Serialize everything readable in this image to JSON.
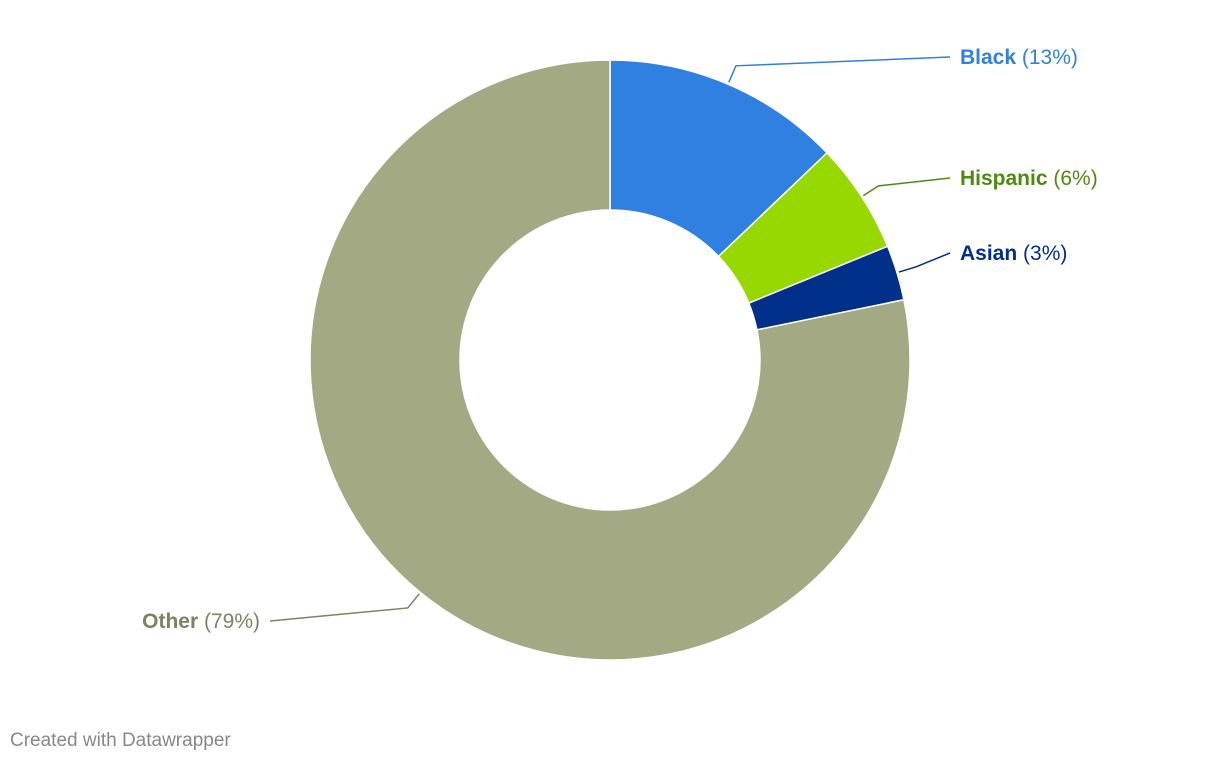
{
  "chart_data": {
    "type": "pie",
    "subtype": "donut",
    "slices": [
      {
        "label": "Black",
        "value": 13,
        "display": "(13%)",
        "color": "#2f80e0"
      },
      {
        "label": "Hispanic",
        "value": 6,
        "display": "(6%)",
        "color": "#96d800",
        "label_color": "#4f8a10"
      },
      {
        "label": "Asian",
        "value": 3,
        "display": "(3%)",
        "color": "#00308a"
      },
      {
        "label": "Other",
        "value": 79,
        "display": "(79%)",
        "color": "#a3a983",
        "label_color": "#7d8460"
      }
    ]
  },
  "footer": {
    "credit": "Created with Datawrapper"
  }
}
